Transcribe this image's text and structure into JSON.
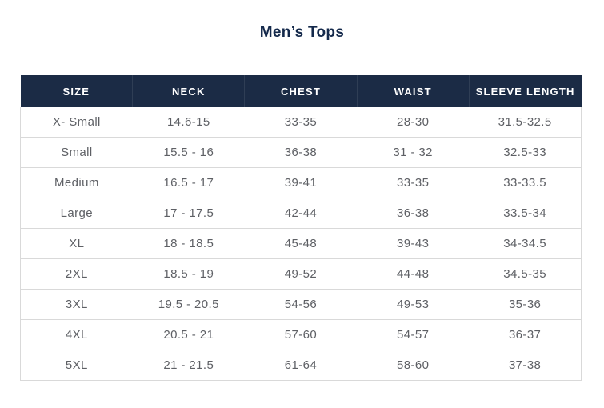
{
  "page": {
    "title": "Men’s Tops"
  },
  "colors": {
    "header_bg": "#1b2b45",
    "header_text": "#ffffff",
    "title_text": "#14294b",
    "body_text": "#5e6065",
    "row_border": "#d9d9d9"
  },
  "chart_data": {
    "type": "table",
    "title": "Men’s Tops",
    "columns": [
      "SIZE",
      "NECK",
      "CHEST",
      "WAIST",
      "SLEEVE LENGTH"
    ],
    "rows": [
      [
        "X- Small",
        "14.6-15",
        "33-35",
        "28-30",
        "31.5-32.5"
      ],
      [
        "Small",
        "15.5 - 16",
        "36-38",
        "31 - 32",
        "32.5-33"
      ],
      [
        "Medium",
        "16.5 - 17",
        "39-41",
        "33-35",
        "33-33.5"
      ],
      [
        "Large",
        "17 - 17.5",
        "42-44",
        "36-38",
        "33.5-34"
      ],
      [
        "XL",
        "18 - 18.5",
        "45-48",
        "39-43",
        "34-34.5"
      ],
      [
        "2XL",
        "18.5 - 19",
        "49-52",
        "44-48",
        "34.5-35"
      ],
      [
        "3XL",
        "19.5 - 20.5",
        "54-56",
        "49-53",
        "35-36"
      ],
      [
        "4XL",
        "20.5 - 21",
        "57-60",
        "54-57",
        "36-37"
      ],
      [
        "5XL",
        "21 - 21.5",
        "61-64",
        "58-60",
        "37-38"
      ]
    ]
  }
}
